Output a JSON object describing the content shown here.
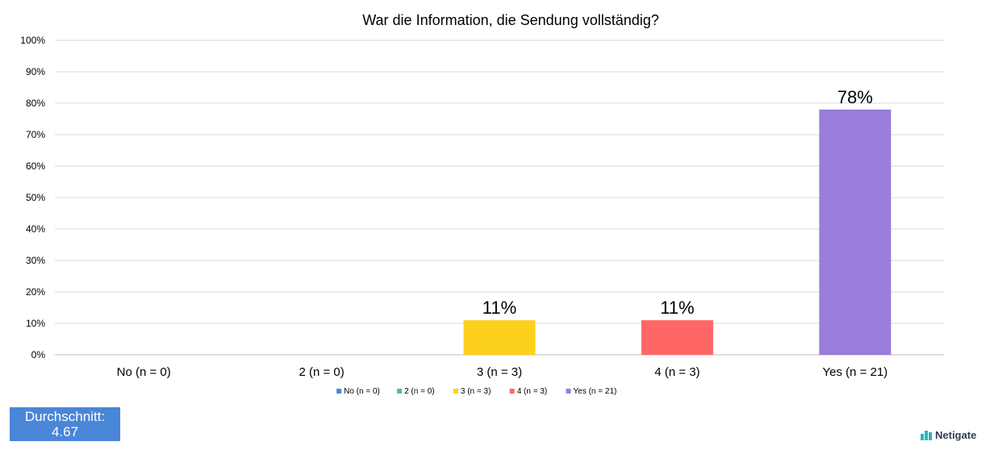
{
  "chart_data": {
    "type": "bar",
    "title": "War die Information, die Sendung vollständig?",
    "categories": [
      "No (n = 0)",
      "2 (n = 0)",
      "3 (n = 3)",
      "4 (n = 3)",
      "Yes (n = 21)"
    ],
    "values": [
      0,
      0,
      11,
      11,
      78
    ],
    "data_labels": [
      "",
      "",
      "11%",
      "11%",
      "78%"
    ],
    "colors": [
      "#4a86d8",
      "#5fb89a",
      "#fdd01e",
      "#ff6666",
      "#9a7cdb"
    ],
    "yticks": [
      "0%",
      "10%",
      "20%",
      "30%",
      "40%",
      "50%",
      "60%",
      "70%",
      "80%",
      "90%",
      "100%"
    ],
    "ylim": [
      0,
      100
    ],
    "grid": true,
    "legend_position": "bottom"
  },
  "average": {
    "label": "Durchschnitt:",
    "value": "4.67"
  },
  "brand": {
    "name": "Netigate"
  }
}
